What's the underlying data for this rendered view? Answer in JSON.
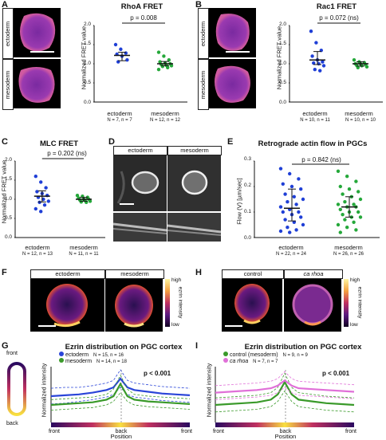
{
  "panels": {
    "A": {
      "letter": "A",
      "title": "RhoA FRET",
      "ylabel": "Normalized FRET value",
      "p": "p = 0.008",
      "img_labels": [
        "ectoderm",
        "mesoderm"
      ],
      "groups": [
        {
          "name": "ectoderm",
          "n": "N = 7, n = 7"
        },
        {
          "name": "mesoderm",
          "n": "N = 12, n = 12"
        }
      ],
      "yticks": [
        "0.0",
        "0.5",
        "1.0",
        "1.5",
        "2.0"
      ]
    },
    "B": {
      "letter": "B",
      "title": "Rac1 FRET",
      "ylabel": "Normalized FRET value",
      "p": "p = 0.072 (ns)",
      "img_labels": [
        "ectoderm",
        "mesoderm"
      ],
      "groups": [
        {
          "name": "ectoderm",
          "n": "N = 10, n = 11"
        },
        {
          "name": "mesoderm",
          "n": "N = 10, n = 10"
        }
      ],
      "yticks": [
        "0.0",
        "0.5",
        "1.0",
        "1.5",
        "2.0"
      ]
    },
    "C": {
      "letter": "C",
      "title": "MLC FRET",
      "ylabel": "Normalized FRET value",
      "p": "p = 0.202 (ns)",
      "groups": [
        {
          "name": "ectoderm",
          "n": "N = 12, n = 13"
        },
        {
          "name": "mesoderm",
          "n": "N = 11, n = 11"
        }
      ],
      "yticks": [
        "0.0",
        "0.5",
        "1.0",
        "1.5",
        "2.0"
      ]
    },
    "D": {
      "letter": "D",
      "img_labels": [
        "ectoderm",
        "mesoderm"
      ]
    },
    "E": {
      "letter": "E",
      "title": "Retrograde actin flow in PGCs",
      "ylabel": "Flow (V) [µm/sec]",
      "p": "p = 0.842 (ns)",
      "groups": [
        {
          "name": "ectoderm",
          "n": "N = 22, n = 24"
        },
        {
          "name": "mesoderm",
          "n": "N = 26, n = 26"
        }
      ],
      "yticks": [
        "0.0",
        "0.1",
        "0.2",
        "0.3"
      ]
    },
    "F": {
      "letter": "F",
      "img_labels": [
        "ectoderm",
        "mesoderm"
      ],
      "cbar": {
        "high": "high",
        "low": "low",
        "label": "ezrin intensity"
      }
    },
    "H": {
      "letter": "H",
      "img_labels": [
        "control",
        "ca rhoa"
      ],
      "cbar": {
        "high": "high",
        "low": "low",
        "label": "ezrin intensity"
      }
    },
    "G": {
      "letter": "G",
      "title": "Ezrin distribution on PGC cortex",
      "ylabel": "Normalized intensity",
      "xlabel": "Position",
      "front": "front",
      "back": "back",
      "p": "p < 0.001",
      "legend": [
        {
          "name": "ectoderm",
          "n": "N = 15, n = 16",
          "color": "#2a45d8"
        },
        {
          "name": "mesoderm",
          "n": "N = 14, n = 18",
          "color": "#3a9a2a"
        }
      ],
      "xticks": [
        "front",
        "back",
        "front"
      ]
    },
    "I": {
      "letter": "I",
      "title": "Ezrin distribution on PGC cortex",
      "ylabel": "Normalized intensity",
      "xlabel": "Position",
      "p": "p < 0.001",
      "legend": [
        {
          "name": "control (mesoderm)",
          "n": "N = 9, n = 9",
          "color": "#3a9a2a"
        },
        {
          "name": "ca rhoa",
          "n": "N = 7, n = 7",
          "color": "#e070d8"
        }
      ],
      "xticks": [
        "front",
        "back",
        "front"
      ]
    }
  },
  "chart_data": [
    {
      "type": "scatter",
      "panel": "A",
      "title": "RhoA FRET",
      "ylabel": "Normalized FRET value",
      "ylim": [
        0,
        2
      ],
      "categories": [
        "ectoderm",
        "mesoderm"
      ],
      "series": [
        {
          "name": "ectoderm",
          "color": "#1f3fd6",
          "values": [
            1.5,
            1.38,
            1.28,
            1.25,
            1.2,
            1.1,
            1.05
          ],
          "mean": 1.22,
          "sd": [
            1.08,
            1.3
          ]
        },
        {
          "name": "mesoderm",
          "color": "#25a83a",
          "values": [
            1.3,
            1.2,
            1.1,
            1.05,
            1.02,
            1.0,
            0.98,
            0.96,
            0.95,
            0.93,
            0.9,
            0.85
          ],
          "mean": 1.0,
          "sd": [
            0.95,
            1.06
          ]
        }
      ]
    },
    {
      "type": "scatter",
      "panel": "B",
      "title": "Rac1 FRET",
      "ylabel": "Normalized FRET value",
      "ylim": [
        0,
        2
      ],
      "categories": [
        "ectoderm",
        "mesoderm"
      ],
      "series": [
        {
          "name": "ectoderm",
          "color": "#1f3fd6",
          "values": [
            1.85,
            1.55,
            1.35,
            1.2,
            1.1,
            1.05,
            1.02,
            1.0,
            0.95,
            0.85,
            0.82
          ],
          "mean": 1.1,
          "sd": [
            0.98,
            1.32
          ]
        },
        {
          "name": "mesoderm",
          "color": "#25a83a",
          "values": [
            1.1,
            1.05,
            1.03,
            1.0,
            1.0,
            0.98,
            0.96,
            0.95,
            0.92,
            0.9
          ],
          "mean": 1.0,
          "sd": [
            0.94,
            1.05
          ]
        }
      ]
    },
    {
      "type": "scatter",
      "panel": "C",
      "title": "MLC FRET",
      "ylabel": "Normalized FRET value",
      "ylim": [
        0,
        2
      ],
      "categories": [
        "ectoderm",
        "mesoderm"
      ],
      "series": [
        {
          "name": "ectoderm",
          "color": "#1f3fd6",
          "values": [
            1.6,
            1.45,
            1.3,
            1.2,
            1.15,
            1.1,
            1.05,
            1.0,
            0.95,
            0.92,
            0.85,
            0.75,
            0.68
          ],
          "mean": 1.08,
          "sd": [
            0.93,
            1.22
          ]
        },
        {
          "name": "mesoderm",
          "color": "#25a83a",
          "values": [
            1.1,
            1.08,
            1.05,
            1.03,
            1.0,
            1.0,
            0.98,
            0.97,
            0.95,
            0.93,
            0.92
          ],
          "mean": 1.0,
          "sd": [
            0.95,
            1.05
          ]
        }
      ]
    },
    {
      "type": "scatter",
      "panel": "E",
      "title": "Retrograde actin flow in PGCs",
      "ylabel": "Flow (V) [µm/sec]",
      "ylim": [
        0,
        0.3
      ],
      "categories": [
        "ectoderm",
        "mesoderm"
      ],
      "series": [
        {
          "name": "ectoderm",
          "color": "#1f3fd6",
          "values": [
            0.27,
            0.25,
            0.23,
            0.21,
            0.2,
            0.19,
            0.17,
            0.16,
            0.15,
            0.14,
            0.13,
            0.12,
            0.11,
            0.1,
            0.1,
            0.09,
            0.08,
            0.07,
            0.06,
            0.05,
            0.04,
            0.03,
            0.025,
            0.02
          ],
          "mean": 0.115,
          "sd": [
            0.065,
            0.19
          ]
        },
        {
          "name": "mesoderm",
          "color": "#25a83a",
          "values": [
            0.26,
            0.24,
            0.22,
            0.2,
            0.19,
            0.18,
            0.17,
            0.16,
            0.15,
            0.14,
            0.13,
            0.13,
            0.12,
            0.12,
            0.11,
            0.1,
            0.1,
            0.09,
            0.08,
            0.08,
            0.07,
            0.06,
            0.05,
            0.04,
            0.03,
            0.02
          ],
          "mean": 0.12,
          "sd": [
            0.08,
            0.16
          ]
        }
      ]
    },
    {
      "type": "line",
      "panel": "G",
      "title": "Ezrin distribution on PGC cortex",
      "ylabel": "Normalized intensity",
      "xlabel": "Position",
      "ylim": [
        0,
        3
      ],
      "x": [
        0,
        0.1,
        0.2,
        0.3,
        0.4,
        0.45,
        0.5,
        0.55,
        0.6,
        0.7,
        0.8,
        0.9,
        1.0
      ],
      "series": [
        {
          "name": "ectoderm",
          "color": "#2a45d8",
          "values": [
            1.5,
            1.55,
            1.6,
            1.7,
            1.85,
            2.0,
            2.5,
            2.0,
            1.85,
            1.75,
            1.65,
            1.6,
            1.55
          ],
          "upper": [
            1.95,
            2.0,
            2.0,
            2.1,
            2.25,
            2.4,
            3.0,
            2.4,
            2.25,
            2.15,
            2.05,
            2.0,
            1.95
          ],
          "lower": [
            1.05,
            1.1,
            1.2,
            1.3,
            1.45,
            1.6,
            2.0,
            1.6,
            1.45,
            1.35,
            1.25,
            1.2,
            1.15
          ]
        },
        {
          "name": "mesoderm",
          "color": "#3a9a2a",
          "values": [
            1.0,
            1.05,
            1.1,
            1.15,
            1.3,
            1.5,
            2.2,
            1.5,
            1.3,
            1.2,
            1.15,
            1.1,
            1.05
          ],
          "upper": [
            1.3,
            1.35,
            1.4,
            1.45,
            1.6,
            1.9,
            2.7,
            1.9,
            1.6,
            1.5,
            1.45,
            1.4,
            1.35
          ],
          "lower": [
            0.7,
            0.75,
            0.8,
            0.85,
            1.0,
            1.2,
            1.7,
            1.2,
            1.0,
            0.9,
            0.85,
            0.8,
            0.75
          ]
        }
      ]
    },
    {
      "type": "line",
      "panel": "I",
      "title": "Ezrin distribution on PGC cortex",
      "ylabel": "Normalized intensity",
      "xlabel": "Position",
      "ylim": [
        0,
        3
      ],
      "x": [
        0,
        0.1,
        0.2,
        0.3,
        0.4,
        0.45,
        0.5,
        0.55,
        0.6,
        0.7,
        0.8,
        0.9,
        1.0
      ],
      "series": [
        {
          "name": "control (mesoderm)",
          "color": "#3a9a2a",
          "values": [
            1.0,
            1.05,
            1.1,
            1.15,
            1.3,
            1.6,
            2.3,
            1.6,
            1.3,
            1.2,
            1.1,
            1.05,
            1.0
          ],
          "upper": [
            1.4,
            1.45,
            1.5,
            1.55,
            1.7,
            2.0,
            2.8,
            2.0,
            1.7,
            1.6,
            1.5,
            1.45,
            1.4
          ],
          "lower": [
            0.6,
            0.65,
            0.7,
            0.75,
            0.9,
            1.2,
            1.8,
            1.2,
            0.9,
            0.8,
            0.7,
            0.65,
            0.6
          ]
        },
        {
          "name": "ca rhoa",
          "color": "#e070d8",
          "values": [
            1.7,
            1.75,
            1.8,
            1.85,
            1.95,
            2.1,
            2.4,
            2.1,
            1.95,
            1.9,
            1.85,
            1.8,
            1.75
          ],
          "upper": [
            2.1,
            2.15,
            2.2,
            2.25,
            2.35,
            2.5,
            2.9,
            2.5,
            2.35,
            2.3,
            2.25,
            2.2,
            2.15
          ],
          "lower": [
            1.3,
            1.35,
            1.4,
            1.45,
            1.55,
            1.7,
            2.0,
            1.7,
            1.55,
            1.5,
            1.45,
            1.4,
            1.35
          ]
        }
      ]
    }
  ]
}
